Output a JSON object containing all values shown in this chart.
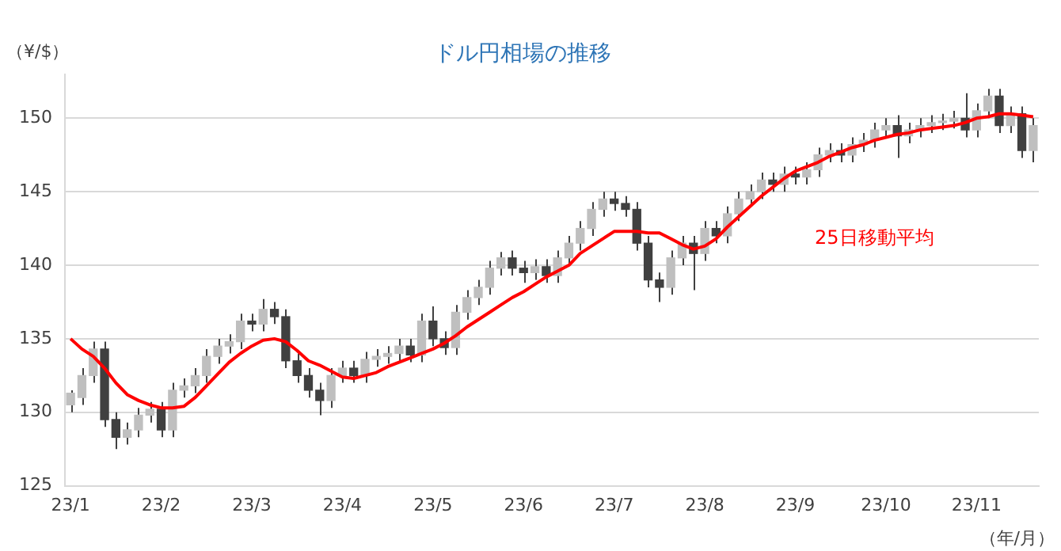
{
  "chart_data": {
    "type": "candlestick",
    "title": "ドル円相場の推移",
    "ylabel": "（¥/$）",
    "xlabel": "（年/月）",
    "categories": [
      "23/1",
      null,
      null,
      null,
      null,
      null,
      null,
      null,
      "23/2",
      null,
      null,
      null,
      null,
      null,
      null,
      null,
      "23/3",
      null,
      null,
      null,
      null,
      null,
      null,
      null,
      "23/4",
      null,
      null,
      null,
      null,
      null,
      null,
      null,
      "23/5",
      null,
      null,
      null,
      null,
      null,
      null,
      null,
      "23/6",
      null,
      null,
      null,
      null,
      null,
      null,
      null,
      "23/7",
      null,
      null,
      null,
      null,
      null,
      null,
      null,
      "23/8",
      null,
      null,
      null,
      null,
      null,
      null,
      null,
      "23/9",
      null,
      null,
      null,
      null,
      null,
      null,
      null,
      "23/10",
      null,
      null,
      null,
      null,
      null,
      null,
      null,
      "23/11",
      null,
      null,
      null,
      null,
      null
    ],
    "series": [
      {
        "type": "candlestick",
        "color": "#404040",
        "colors": [
          "#bfbfbf",
          "#bfbfbf",
          "#bfbfbf",
          "#404040",
          "#404040",
          "#bfbfbf",
          "#bfbfbf",
          "#bfbfbf",
          "#404040",
          "#bfbfbf",
          "#bfbfbf",
          "#bfbfbf",
          "#bfbfbf",
          "#bfbfbf",
          "#bfbfbf",
          "#bfbfbf",
          "#404040",
          "#bfbfbf",
          "#404040",
          "#404040",
          "#404040",
          "#404040",
          "#404040",
          "#bfbfbf",
          "#bfbfbf",
          "#404040",
          "#bfbfbf",
          "#bfbfbf",
          "#bfbfbf",
          "#bfbfbf",
          "#404040",
          "#bfbfbf",
          "#404040",
          "#404040",
          "#bfbfbf",
          "#bfbfbf",
          "#bfbfbf",
          "#bfbfbf",
          "#bfbfbf",
          "#404040",
          "#404040",
          "#bfbfbf",
          "#404040",
          "#bfbfbf",
          "#bfbfbf",
          "#bfbfbf",
          "#bfbfbf",
          "#bfbfbf",
          "#404040",
          "#404040",
          "#404040",
          "#404040",
          "#404040",
          "#bfbfbf",
          "#bfbfbf",
          "#404040",
          "#bfbfbf",
          "#404040",
          "#bfbfbf",
          "#bfbfbf",
          "#bfbfbf",
          "#bfbfbf",
          "#404040",
          "#bfbfbf",
          "#404040",
          "#bfbfbf",
          "#bfbfbf",
          "#bfbfbf",
          "#404040",
          "#bfbfbf",
          "#bfbfbf",
          "#bfbfbf",
          "#bfbfbf",
          "#404040",
          "#bfbfbf",
          "#bfbfbf",
          "#bfbfbf",
          "#bfbfbf",
          "#bfbfbf",
          "#404040",
          "#bfbfbf",
          "#bfbfbf",
          "#404040",
          "#bfbfbf",
          "#404040",
          "#bfbfbf"
        ],
        "ohlc": [
          [
            130.5,
            131.5,
            130.0,
            131.3
          ],
          [
            131.0,
            133.0,
            130.5,
            132.5
          ],
          [
            132.5,
            134.8,
            132.0,
            134.3
          ],
          [
            134.3,
            134.8,
            129.0,
            129.5
          ],
          [
            129.5,
            130.0,
            127.5,
            128.3
          ],
          [
            128.3,
            129.3,
            127.8,
            128.8
          ],
          [
            128.8,
            130.3,
            128.3,
            129.8
          ],
          [
            129.8,
            130.7,
            129.3,
            130.2
          ],
          [
            130.2,
            130.7,
            128.3,
            128.8
          ],
          [
            128.8,
            132.0,
            128.3,
            131.5
          ],
          [
            131.5,
            132.3,
            131.0,
            131.8
          ],
          [
            131.8,
            133.0,
            131.3,
            132.5
          ],
          [
            132.5,
            134.3,
            132.0,
            133.8
          ],
          [
            133.8,
            135.0,
            133.3,
            134.5
          ],
          [
            134.5,
            135.3,
            134.0,
            134.8
          ],
          [
            134.8,
            136.7,
            134.3,
            136.2
          ],
          [
            136.2,
            136.7,
            135.5,
            136.0
          ],
          [
            136.0,
            137.7,
            135.5,
            137.0
          ],
          [
            137.0,
            137.5,
            136.0,
            136.5
          ],
          [
            136.5,
            137.0,
            133.0,
            133.5
          ],
          [
            133.5,
            134.0,
            132.0,
            132.5
          ],
          [
            132.5,
            133.0,
            131.0,
            131.5
          ],
          [
            131.5,
            132.0,
            129.8,
            130.8
          ],
          [
            130.8,
            133.0,
            130.3,
            132.5
          ],
          [
            132.5,
            133.5,
            132.0,
            133.0
          ],
          [
            133.0,
            133.5,
            132.0,
            132.5
          ],
          [
            132.5,
            134.1,
            132.0,
            133.6
          ],
          [
            133.6,
            134.3,
            133.1,
            133.8
          ],
          [
            133.8,
            134.5,
            133.3,
            134.0
          ],
          [
            134.0,
            135.0,
            133.5,
            134.5
          ],
          [
            134.5,
            135.0,
            133.4,
            133.9
          ],
          [
            133.9,
            136.7,
            133.4,
            136.2
          ],
          [
            136.2,
            137.2,
            134.5,
            135.0
          ],
          [
            135.0,
            135.5,
            133.9,
            134.4
          ],
          [
            134.4,
            137.3,
            133.9,
            136.8
          ],
          [
            136.8,
            138.3,
            136.3,
            137.8
          ],
          [
            137.8,
            139.0,
            137.3,
            138.5
          ],
          [
            138.5,
            140.3,
            138.0,
            139.8
          ],
          [
            139.8,
            140.9,
            139.3,
            140.5
          ],
          [
            140.5,
            141.0,
            139.3,
            139.8
          ],
          [
            139.8,
            140.3,
            138.8,
            139.5
          ],
          [
            139.5,
            140.4,
            139.0,
            139.9
          ],
          [
            139.9,
            140.4,
            138.8,
            139.3
          ],
          [
            139.3,
            141.0,
            138.8,
            140.5
          ],
          [
            140.5,
            142.0,
            140.0,
            141.5
          ],
          [
            141.5,
            143.0,
            141.0,
            142.5
          ],
          [
            142.5,
            144.3,
            142.0,
            143.8
          ],
          [
            143.8,
            145.0,
            143.3,
            144.5
          ],
          [
            144.5,
            145.0,
            143.7,
            144.2
          ],
          [
            144.2,
            144.7,
            143.3,
            143.8
          ],
          [
            143.8,
            144.3,
            141.0,
            141.5
          ],
          [
            141.5,
            142.0,
            138.5,
            139.0
          ],
          [
            139.0,
            139.5,
            137.5,
            138.5
          ],
          [
            138.5,
            141.0,
            138.0,
            140.5
          ],
          [
            140.5,
            142.0,
            140.0,
            141.5
          ],
          [
            141.5,
            142.0,
            138.3,
            140.8
          ],
          [
            140.8,
            143.0,
            140.3,
            142.5
          ],
          [
            142.5,
            143.0,
            141.5,
            142.0
          ],
          [
            142.0,
            144.0,
            141.5,
            143.5
          ],
          [
            143.5,
            145.0,
            143.0,
            144.5
          ],
          [
            144.5,
            145.5,
            144.0,
            145.0
          ],
          [
            145.0,
            146.3,
            144.5,
            145.8
          ],
          [
            145.8,
            146.3,
            145.0,
            145.5
          ],
          [
            145.5,
            146.7,
            145.0,
            146.2
          ],
          [
            146.2,
            146.7,
            145.5,
            146.0
          ],
          [
            146.0,
            147.0,
            145.5,
            146.5
          ],
          [
            146.5,
            148.0,
            146.0,
            147.5
          ],
          [
            147.5,
            148.3,
            147.0,
            147.8
          ],
          [
            147.8,
            148.3,
            147.0,
            147.5
          ],
          [
            147.5,
            148.7,
            147.0,
            148.2
          ],
          [
            148.2,
            149.0,
            147.7,
            148.5
          ],
          [
            148.5,
            149.7,
            148.0,
            149.2
          ],
          [
            149.2,
            150.0,
            148.7,
            149.5
          ],
          [
            149.5,
            150.2,
            147.3,
            148.8
          ],
          [
            148.8,
            149.7,
            148.3,
            149.2
          ],
          [
            149.2,
            150.0,
            148.7,
            149.5
          ],
          [
            149.5,
            150.2,
            149.0,
            149.7
          ],
          [
            149.7,
            150.3,
            149.2,
            149.8
          ],
          [
            149.8,
            150.5,
            149.3,
            150.0
          ],
          [
            150.0,
            151.7,
            148.7,
            149.2
          ],
          [
            149.2,
            151.0,
            148.7,
            150.5
          ],
          [
            150.5,
            152.0,
            150.0,
            151.5
          ],
          [
            151.5,
            152.0,
            149.0,
            149.5
          ],
          [
            149.5,
            150.8,
            149.0,
            150.3
          ],
          [
            150.3,
            150.8,
            147.3,
            147.8
          ],
          [
            147.8,
            150.0,
            147.0,
            149.5
          ]
        ]
      },
      {
        "type": "line",
        "name": "25日移動平均",
        "color": "#ff0000",
        "values": [
          135.0,
          134.3,
          133.8,
          133.0,
          132.0,
          131.2,
          130.8,
          130.5,
          130.3,
          130.3,
          130.4,
          131.0,
          131.8,
          132.6,
          133.4,
          134.0,
          134.5,
          134.9,
          135.0,
          134.8,
          134.2,
          133.5,
          133.2,
          132.8,
          132.4,
          132.3,
          132.5,
          132.7,
          133.1,
          133.4,
          133.7,
          134.0,
          134.3,
          134.7,
          135.2,
          135.8,
          136.3,
          136.8,
          137.3,
          137.8,
          138.2,
          138.7,
          139.2,
          139.6,
          140.0,
          140.8,
          141.3,
          141.8,
          142.3,
          142.3,
          142.3,
          142.2,
          142.2,
          141.8,
          141.4,
          141.1,
          141.3,
          141.8,
          142.6,
          143.3,
          144.0,
          144.7,
          145.3,
          145.9,
          146.4,
          146.7,
          147.0,
          147.4,
          147.7,
          148.0,
          148.2,
          148.5,
          148.7,
          148.9,
          149.0,
          149.2,
          149.3,
          149.4,
          149.5,
          149.7,
          150.0,
          150.1,
          150.3,
          150.3,
          150.2,
          150.1
        ]
      }
    ],
    "ylim": [
      125,
      153
    ],
    "yticks": [
      125,
      130,
      135,
      140,
      145,
      150
    ],
    "grid": "y",
    "legend": false
  }
}
